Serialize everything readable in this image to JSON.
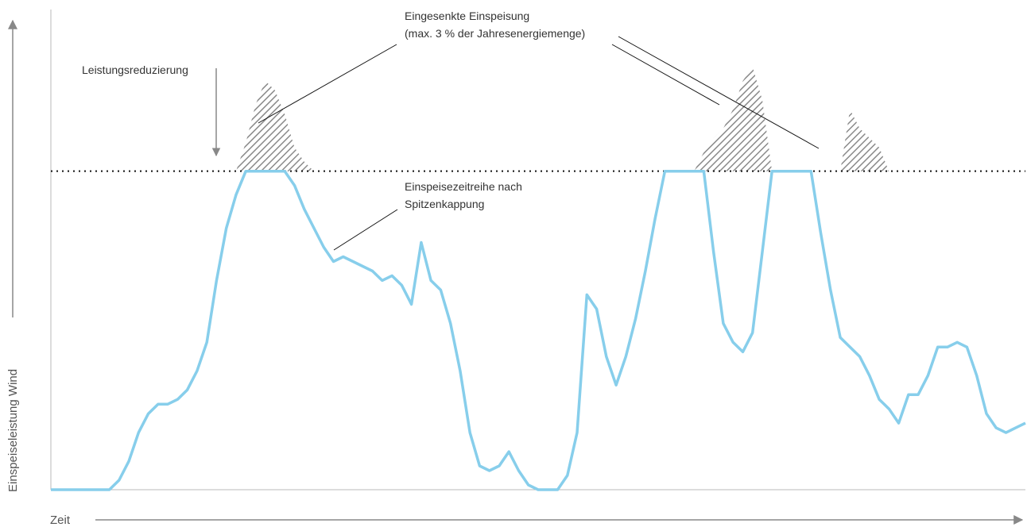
{
  "chart_data": {
    "type": "area",
    "title": "",
    "xlabel": "Zeit",
    "ylabel": "Einspeiseleistung Wind",
    "xlim": [
      0,
      100
    ],
    "ylim": [
      0,
      100
    ],
    "cap_level": 67,
    "grid": false,
    "series": [
      {
        "name": "Einspeisezeitreihe nach Spitzenkappung",
        "x": [
          0,
          6,
          7,
          8,
          9,
          10,
          11,
          12,
          13,
          14,
          15,
          16,
          17,
          18,
          19,
          20,
          21,
          22,
          23,
          24,
          25,
          26,
          27,
          28,
          29,
          30,
          31,
          32,
          33,
          34,
          35,
          36,
          37,
          38,
          39,
          40,
          41,
          42,
          43,
          44,
          45,
          46,
          47,
          48,
          49,
          50,
          51,
          52,
          53,
          54,
          55,
          56,
          57,
          58,
          59,
          60,
          61,
          62,
          63,
          64,
          65,
          66,
          67,
          68,
          69,
          70,
          71,
          72,
          73,
          74,
          75,
          76,
          77,
          78,
          79,
          80,
          81,
          82,
          83,
          84,
          85,
          86,
          87,
          88,
          89,
          90,
          91,
          92,
          93,
          94,
          95,
          96,
          97,
          98,
          99,
          100
        ],
        "values": [
          0,
          0,
          2,
          6,
          12,
          16,
          18,
          18,
          19,
          21,
          25,
          31,
          44,
          55,
          62,
          67,
          67,
          67,
          67,
          67,
          64,
          59,
          55,
          51,
          48,
          49,
          48,
          47,
          46,
          44,
          45,
          43,
          39,
          52,
          44,
          42,
          35,
          25,
          12,
          5,
          4,
          5,
          8,
          4,
          1,
          0,
          0,
          0,
          3,
          12,
          41,
          38,
          28,
          22,
          28,
          36,
          46,
          57,
          67,
          67,
          67,
          67,
          67,
          50,
          35,
          31,
          29,
          33,
          50,
          67,
          67,
          67,
          67,
          67,
          54,
          42,
          32,
          30,
          28,
          24,
          19,
          17,
          14,
          20,
          20,
          24,
          30,
          30,
          31,
          30,
          24,
          16,
          13,
          12,
          13,
          14
        ],
        "color": "#87ceeb"
      },
      {
        "name": "Eingesenkte Einspeisung",
        "x": [
          19,
          20,
          21,
          22,
          23,
          24,
          25,
          26,
          27,
          28,
          66,
          67,
          68,
          69,
          70,
          71,
          72,
          73,
          74,
          75,
          76,
          77,
          78,
          79,
          80,
          81,
          82,
          83,
          84,
          85,
          86
        ],
        "values": [
          67,
          73,
          81,
          86,
          84,
          79,
          72,
          69,
          67,
          67,
          67,
          71,
          74,
          76,
          80,
          86,
          89,
          82,
          67,
          67,
          67,
          67,
          67,
          67,
          67,
          67,
          80,
          76,
          74,
          72,
          67
        ],
        "color": "#888888"
      }
    ],
    "annotations": [
      {
        "name": "Leistungsreduzierung",
        "text": "Leistungsreduzierung"
      },
      {
        "name": "eingesenkte-line1",
        "text": "Eingesenkte Einspeisung"
      },
      {
        "name": "eingesenkte-line2",
        "text": "(max. 3 % der Jahresenergiemenge)"
      },
      {
        "name": "einspeise-line1",
        "text": "Einspeisezeitreihe nach"
      },
      {
        "name": "einspeise-line2",
        "text": "Spitzenkappung"
      }
    ]
  }
}
